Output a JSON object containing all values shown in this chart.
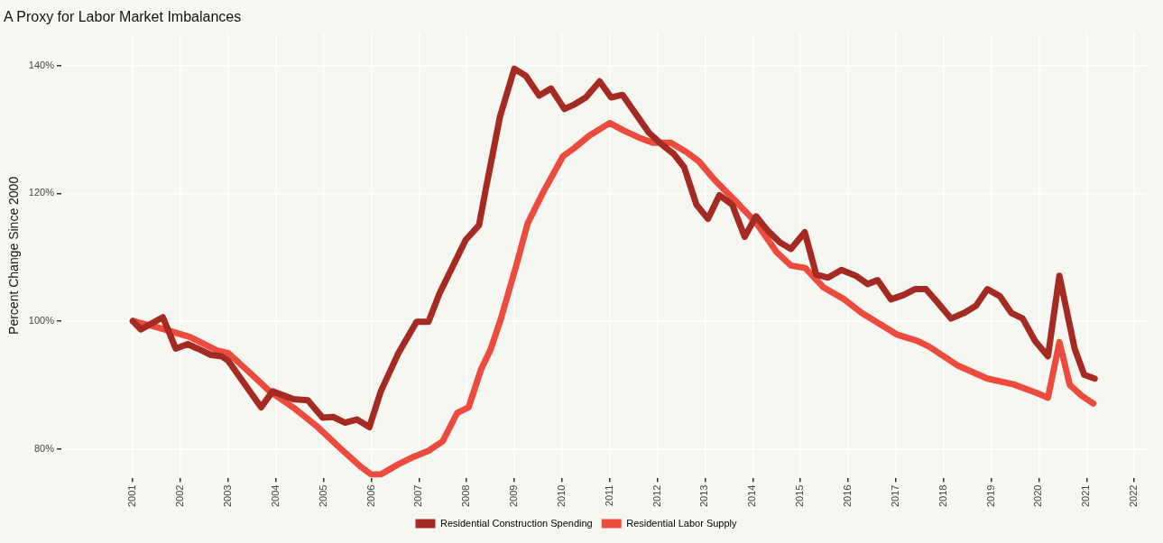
{
  "chart_data": {
    "type": "line",
    "title": "A Proxy for Labor Market Imbalances",
    "ylabel": "Percent Change Since 2000",
    "xlim": [
      1999.5,
      2022.3
    ],
    "ylim": [
      75.5,
      145
    ],
    "xticks": [
      2001,
      2002,
      2003,
      2004,
      2005,
      2006,
      2007,
      2008,
      2009,
      2010,
      2011,
      2012,
      2013,
      2014,
      2015,
      2016,
      2017,
      2018,
      2019,
      2020,
      2021,
      2022
    ],
    "yticks": [
      {
        "value": 80,
        "label": "80%"
      },
      {
        "value": 100,
        "label": "100%"
      },
      {
        "value": 120,
        "label": "120%"
      },
      {
        "value": 140,
        "label": "140%"
      }
    ],
    "grid": true,
    "legend": "bottom",
    "marker": "none",
    "line_style": "solid",
    "series": [
      {
        "name": "Residential Construction Spending",
        "color": "#a52a22",
        "x": [
          2001.0,
          2001.17,
          2001.63,
          2001.9,
          2002.15,
          2002.36,
          2002.64,
          2002.86,
          2003.0,
          2003.69,
          2003.93,
          2004.36,
          2004.67,
          2004.98,
          2005.2,
          2005.45,
          2005.7,
          2005.96,
          2006.2,
          2006.57,
          2006.95,
          2007.2,
          2007.43,
          2007.98,
          2008.26,
          2008.4,
          2008.7,
          2009.0,
          2009.24,
          2009.52,
          2009.77,
          2010.05,
          2010.26,
          2010.5,
          2010.79,
          2011.03,
          2011.27,
          2011.55,
          2011.82,
          2012.1,
          2012.35,
          2012.56,
          2012.82,
          2013.06,
          2013.3,
          2013.57,
          2013.83,
          2014.07,
          2014.31,
          2014.57,
          2014.8,
          2015.09,
          2015.33,
          2015.58,
          2015.86,
          2016.16,
          2016.41,
          2016.62,
          2016.9,
          2017.17,
          2017.4,
          2017.63,
          2017.89,
          2018.16,
          2018.44,
          2018.68,
          2018.92,
          2019.18,
          2019.42,
          2019.66,
          2019.92,
          2020.19,
          2020.43,
          2020.75,
          2020.95,
          2021.17
        ],
        "values": [
          100,
          98.7,
          100.6,
          95.7,
          96.4,
          95.7,
          94.7,
          94.5,
          93.8,
          86.5,
          89,
          87.8,
          87.6,
          84.9,
          85,
          84.1,
          84.6,
          83.4,
          89,
          95,
          99.9,
          99.9,
          104.3,
          112.7,
          115,
          120.6,
          132,
          139.5,
          138.4,
          135.3,
          136.4,
          133.2,
          133.9,
          135,
          137.5,
          135,
          135.4,
          132.4,
          129.5,
          127.6,
          126.1,
          124.1,
          118.2,
          116,
          119.7,
          118.2,
          113.2,
          116.4,
          114.2,
          112.3,
          111.3,
          113.9,
          107.3,
          106.8,
          108,
          107.1,
          105.8,
          106.4,
          103.4,
          104.1,
          105,
          105,
          102.8,
          100.4,
          101.3,
          102.4,
          105,
          103.9,
          101.3,
          100.4,
          96.9,
          94.5,
          107.1,
          95.7,
          91.6,
          91
        ]
      },
      {
        "name": "Residential Labor Supply",
        "color": "#ee4b3f",
        "x": [
          2001.0,
          2001.53,
          2002.2,
          2002.77,
          2003.0,
          2003.5,
          2003.87,
          2004.36,
          2004.85,
          2005.35,
          2005.78,
          2006.0,
          2006.2,
          2006.57,
          2006.9,
          2007.2,
          2007.5,
          2007.8,
          2008.04,
          2008.3,
          2008.5,
          2008.72,
          2009.04,
          2009.28,
          2009.6,
          2010.02,
          2010.26,
          2010.57,
          2011.0,
          2011.3,
          2011.62,
          2011.9,
          2012.28,
          2012.6,
          2012.87,
          2013.2,
          2013.65,
          2014.07,
          2014.5,
          2014.8,
          2015.1,
          2015.48,
          2015.92,
          2016.28,
          2016.65,
          2017.02,
          2017.45,
          2017.7,
          2018.31,
          2018.92,
          2019.47,
          2019.97,
          2020.19,
          2020.43,
          2020.65,
          2020.9,
          2021.14
        ],
        "values": [
          100,
          99,
          97.5,
          95.4,
          95,
          91.6,
          89,
          86.5,
          83.6,
          80.1,
          77.2,
          76,
          76,
          77.6,
          78.8,
          79.7,
          81.2,
          85.6,
          86.5,
          92.4,
          95.5,
          100.4,
          108.7,
          115.3,
          120.1,
          125.8,
          127.1,
          129,
          131,
          129.8,
          128.7,
          127.9,
          127.9,
          126.5,
          125,
          122.1,
          118.7,
          115.4,
          110.8,
          108.7,
          108.3,
          105.3,
          103.4,
          101.3,
          99.6,
          97.9,
          96.9,
          96,
          93,
          91,
          90.1,
          88.7,
          88,
          96.7,
          90,
          88.3,
          87.1
        ]
      }
    ]
  }
}
